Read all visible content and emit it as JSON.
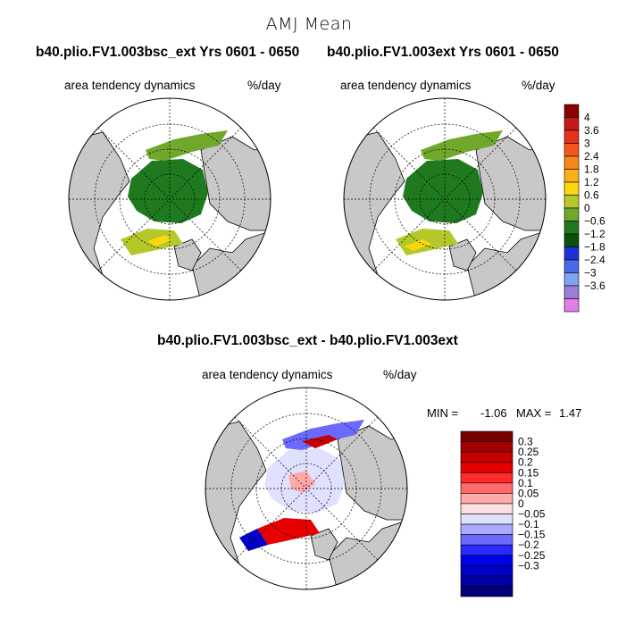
{
  "title": "AMJ Mean",
  "panels": [
    {
      "run": "b40.plio.FV1.003bsc_ext  Yrs 0601 - 0650",
      "variable": "area tendency dynamics",
      "units": "%/day"
    },
    {
      "run": "b40.plio.FV1.003ext  Yrs 0601 - 0650",
      "variable": "area tendency dynamics",
      "units": "%/day"
    }
  ],
  "difference": {
    "run": "b40.plio.FV1.003bsc_ext - b40.plio.FV1.003ext",
    "variable": "area tendency dynamics",
    "units": "%/day",
    "min_label": "MIN =",
    "min_value": "-1.06",
    "max_label": "MAX =",
    "max_value": "1.47"
  },
  "chart_data": [
    {
      "type": "heatmap",
      "projection": "north polar stereographic",
      "title": "b40.plio.FV1.003bsc_ext  Yrs 0601 - 0650",
      "colorbar": {
        "labels": [
          "4",
          "3.6",
          "3",
          "2.4",
          "1.8",
          "1.2",
          "0.6",
          "0",
          "-0.6",
          "-1.2",
          "-1.8",
          "-2.4",
          "-3",
          "-3.6"
        ],
        "colors": [
          "#8b0000",
          "#c41a1a",
          "#e8301a",
          "#f4561e",
          "#f7861a",
          "#f9b216",
          "#fbd712",
          "#b5c82a",
          "#6fa82a",
          "#1f7a1f",
          "#0a4f0a",
          "#1f2fd6",
          "#4a6ae8",
          "#7fa3ef",
          "#9a7fd6",
          "#e07fe8"
        ]
      }
    },
    {
      "type": "heatmap",
      "projection": "north polar stereographic",
      "title": "b40.plio.FV1.003ext  Yrs 0601 - 0650",
      "colorbar": "shared"
    },
    {
      "type": "heatmap",
      "projection": "north polar stereographic",
      "title": "b40.plio.FV1.003bsc_ext - b40.plio.FV1.003ext",
      "min": -1.06,
      "max": 1.47,
      "colorbar": {
        "labels": [
          "0.3",
          "0.25",
          "0.2",
          "0.15",
          "0.1",
          "0.05",
          "0",
          "-0.05",
          "-0.1",
          "-0.15",
          "-0.2",
          "-0.25",
          "-0.3"
        ],
        "colors": [
          "#7a0000",
          "#a30000",
          "#c80000",
          "#e60000",
          "#ff2a2a",
          "#ff6a6a",
          "#ffaaaa",
          "#ffe0e0",
          "#e0e0ff",
          "#aaaaff",
          "#6a6aff",
          "#2a2aff",
          "#0000e6",
          "#0000c8",
          "#0000a3",
          "#00007a"
        ]
      }
    }
  ]
}
